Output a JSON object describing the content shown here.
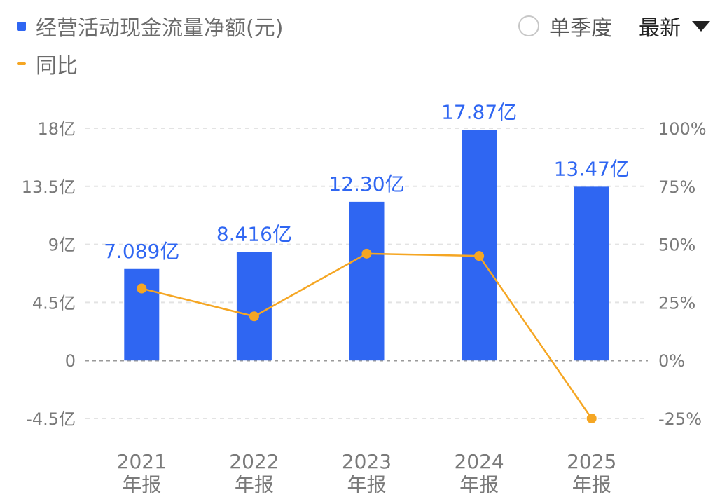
{
  "legend": {
    "bar_label": "经营活动现金流量净额(元)",
    "line_label": "同比"
  },
  "controls": {
    "radio_label": "单季度",
    "select_value": "最新"
  },
  "colors": {
    "bar": "#2f66f2",
    "line": "#f5a623",
    "grid": "#e3e3e3",
    "zero_line": "#9a9a9a"
  },
  "chart_data": {
    "type": "bar",
    "categories": [
      "2021年报",
      "2022年报",
      "2023年报",
      "2024年报",
      "2025年报"
    ],
    "category_lines": [
      [
        "2021",
        "年报"
      ],
      [
        "2022",
        "年报"
      ],
      [
        "2023",
        "年报"
      ],
      [
        "2024",
        "年报"
      ],
      [
        "2025",
        "年报"
      ]
    ],
    "series": [
      {
        "name": "经营活动现金流量净额(元)",
        "type": "bar",
        "axis": "left",
        "values": [
          7.089,
          8.416,
          12.3,
          17.87,
          13.47
        ],
        "data_labels": [
          "7.089亿",
          "8.416亿",
          "12.30亿",
          "17.87亿",
          "13.47亿"
        ]
      },
      {
        "name": "同比",
        "type": "line",
        "axis": "right",
        "values": [
          31,
          19,
          46,
          45,
          -25
        ]
      }
    ],
    "y_left": {
      "unit": "亿",
      "ylim": [
        -4.5,
        18
      ],
      "ticks": [
        18,
        13.5,
        9,
        4.5,
        0,
        -4.5
      ],
      "tick_labels": [
        "18亿",
        "13.5亿",
        "9亿",
        "4.5亿",
        "0",
        "-4.5亿"
      ]
    },
    "y_right": {
      "unit": "%",
      "ylim": [
        -25,
        100
      ],
      "ticks": [
        100,
        75,
        50,
        25,
        0,
        -25
      ],
      "tick_labels": [
        "100%",
        "75%",
        "50%",
        "25%",
        "0%",
        "-25%"
      ]
    },
    "grid": true,
    "legend_position": "top-left"
  }
}
